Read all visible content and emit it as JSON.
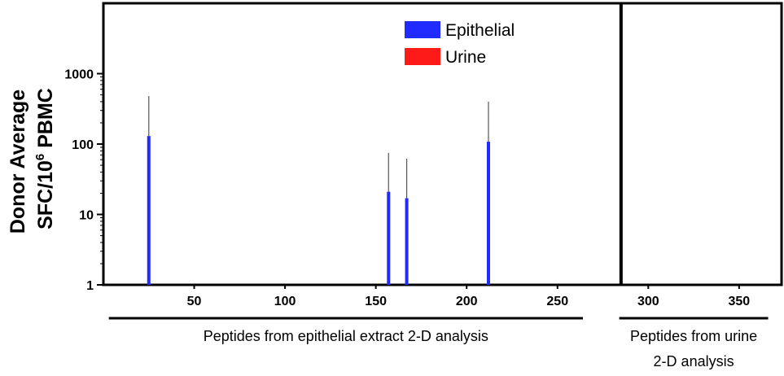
{
  "chart_data": {
    "type": "bar",
    "yscale": "log",
    "ylim": [
      1,
      10000
    ],
    "xlim": [
      0,
      388
    ],
    "y_ticks": [
      {
        "value": 1,
        "label": "1"
      },
      {
        "value": 10,
        "label": "10"
      },
      {
        "value": 100,
        "label": "100"
      },
      {
        "value": 1000,
        "label": "1000"
      }
    ],
    "x_ticks": [
      {
        "value": 50,
        "label": "50"
      },
      {
        "value": 100,
        "label": "100"
      },
      {
        "value": 150,
        "label": "150"
      },
      {
        "value": 200,
        "label": "200"
      },
      {
        "value": 250,
        "label": "250"
      },
      {
        "value": 300,
        "label": "300"
      },
      {
        "value": 350,
        "label": "350"
      }
    ],
    "ylabel_line1": "Donor Average",
    "ylabel_line2_prefix": "SFC/10",
    "ylabel_line2_sup": "6",
    "ylabel_line2_suffix": " PBMC",
    "panel_divider_x": 285,
    "series": [
      {
        "name": "Epithelial",
        "color": "#1f2bff",
        "points": [
          {
            "x": 25,
            "y": 130,
            "err_high": 480
          },
          {
            "x": 157,
            "y": 21,
            "err_high": 75
          },
          {
            "x": 167,
            "y": 17,
            "err_high": 62
          },
          {
            "x": 212,
            "y": 108,
            "err_high": 400
          }
        ]
      },
      {
        "name": "Urine",
        "color": "#ff1a1a",
        "points": []
      }
    ],
    "legend_position": "top-center",
    "groups": [
      {
        "x_range": [
          3,
          264
        ],
        "label_lines": [
          "Peptides from epithelial extract 2-D analysis"
        ]
      },
      {
        "x_range": [
          284,
          366
        ],
        "label_lines": [
          "Peptides from urine",
          "2-D analysis"
        ]
      }
    ]
  }
}
